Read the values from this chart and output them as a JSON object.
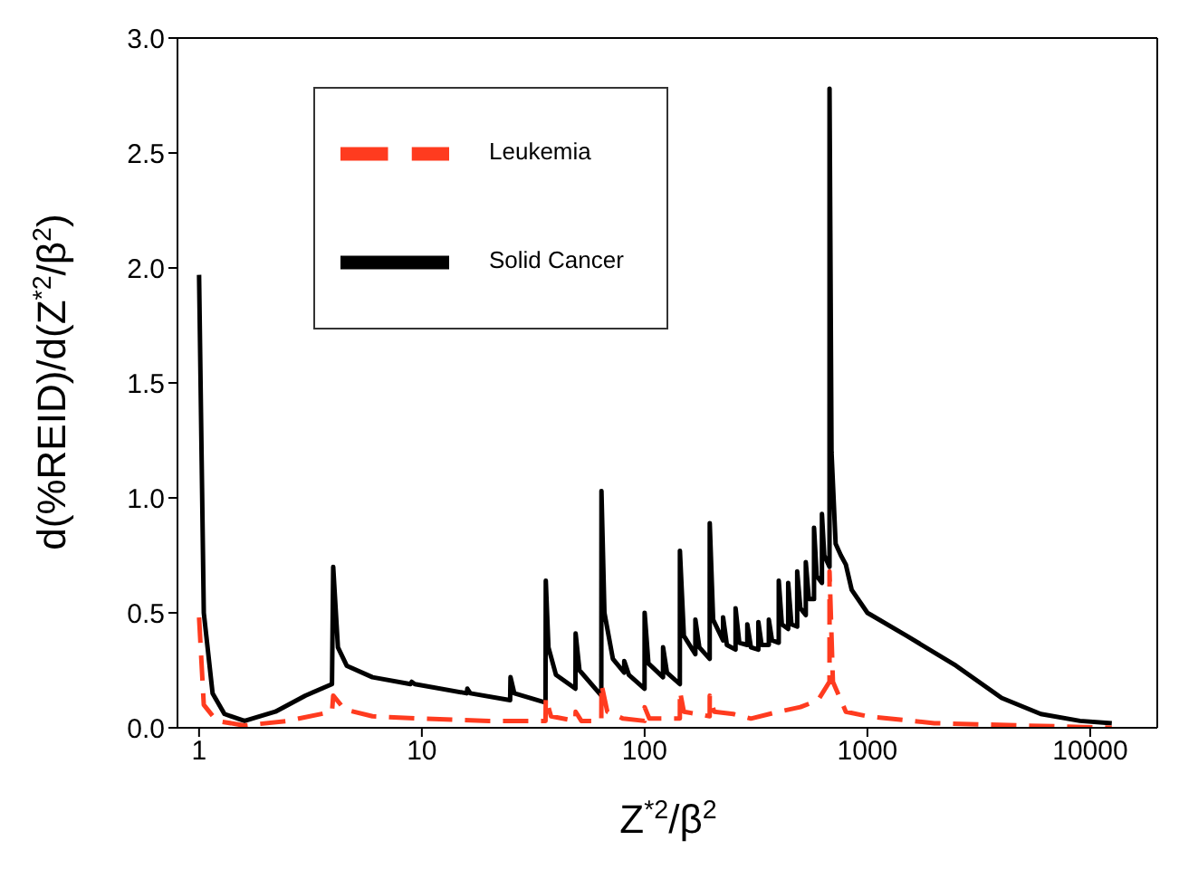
{
  "chart_data": {
    "type": "line",
    "xlabel": "Z$^{*2}$/β$^{2}$",
    "ylabel": "d(%REID)/d(Z$^{*2}$/β$^{2}$)",
    "log": "x",
    "xlim": [
      0.8,
      20000
    ],
    "xticks": [
      1,
      10,
      100,
      1000,
      10000
    ],
    "ylim": [
      0,
      3
    ],
    "yticks": [
      {
        "value": 0,
        "label": "0.0"
      },
      {
        "value": 0.5,
        "label": "0.5"
      },
      {
        "value": 1,
        "label": "1.0"
      },
      {
        "value": 1.5,
        "label": "1.5"
      },
      {
        "value": 2,
        "label": "2.0"
      },
      {
        "value": 2.5,
        "label": "2.5"
      },
      {
        "value": 3,
        "label": "3.0"
      }
    ],
    "grid": false,
    "legend": "top left",
    "marker": "none",
    "series": [
      {
        "name": "Solid Cancer",
        "color": "#000000",
        "line_style": "solid",
        "x": [
          1,
          1.05,
          1.15,
          1.3,
          1.6,
          2.2,
          3,
          3.95,
          4,
          4.2,
          4.6,
          6,
          8.9,
          9,
          9.3,
          15.9,
          16,
          16.5,
          24.9,
          25,
          26,
          35.9,
          36,
          37,
          40,
          48.9,
          49,
          51,
          63.9,
          64,
          66,
          72,
          80.9,
          81,
          85,
          99.9,
          100,
          104,
          120.9,
          121,
          126,
          143.9,
          144,
          150,
          168.9,
          169,
          176,
          195.9,
          196,
          203,
          224.9,
          225,
          234,
          255.9,
          256,
          266,
          288.9,
          289,
          300,
          323.9,
          324,
          335,
          360.9,
          361,
          373,
          399.9,
          400,
          413,
          440.9,
          441,
          456,
          483.9,
          484,
          500,
          528.9,
          529,
          546,
          575.9,
          576,
          592,
          624.9,
          625,
          640,
          675.9,
          676,
          690,
          720,
          760,
          800,
          850,
          1000,
          1500,
          2500,
          4000,
          6000,
          9000,
          12500
        ],
        "values": [
          1.97,
          0.5,
          0.15,
          0.06,
          0.03,
          0.07,
          0.14,
          0.19,
          0.7,
          0.35,
          0.27,
          0.22,
          0.19,
          0.2,
          0.19,
          0.15,
          0.17,
          0.15,
          0.12,
          0.22,
          0.15,
          0.11,
          0.64,
          0.35,
          0.23,
          0.17,
          0.41,
          0.25,
          0.14,
          1.03,
          0.5,
          0.3,
          0.24,
          0.29,
          0.23,
          0.17,
          0.5,
          0.28,
          0.22,
          0.35,
          0.24,
          0.19,
          0.77,
          0.4,
          0.32,
          0.47,
          0.35,
          0.3,
          0.89,
          0.47,
          0.38,
          0.48,
          0.36,
          0.34,
          0.52,
          0.37,
          0.36,
          0.45,
          0.35,
          0.34,
          0.46,
          0.36,
          0.36,
          0.47,
          0.38,
          0.37,
          0.64,
          0.45,
          0.43,
          0.63,
          0.45,
          0.44,
          0.68,
          0.52,
          0.49,
          0.72,
          0.56,
          0.56,
          0.87,
          0.66,
          0.63,
          0.93,
          0.75,
          0.7,
          2.78,
          1.2,
          0.8,
          0.75,
          0.71,
          0.6,
          0.5,
          0.4,
          0.27,
          0.13,
          0.06,
          0.03,
          0.02
        ]
      },
      {
        "name": "Leukemia",
        "color": "#ff3b1f",
        "line_style": "dashed",
        "x": [
          1,
          1.05,
          1.2,
          1.6,
          2.5,
          3.95,
          4,
          4.5,
          6,
          10,
          20,
          35.9,
          36,
          38,
          48.9,
          49,
          52,
          63.9,
          64,
          68,
          80,
          99.9,
          100,
          105,
          143.9,
          144,
          150,
          195.9,
          196,
          205,
          250,
          300,
          400,
          500,
          600,
          675.9,
          676,
          700,
          800,
          1000,
          2000,
          5000,
          12500
        ],
        "values": [
          0.48,
          0.1,
          0.03,
          0.01,
          0.03,
          0.07,
          0.14,
          0.08,
          0.05,
          0.04,
          0.03,
          0.03,
          0.13,
          0.05,
          0.03,
          0.07,
          0.03,
          0.03,
          0.19,
          0.07,
          0.04,
          0.03,
          0.09,
          0.04,
          0.04,
          0.16,
          0.07,
          0.05,
          0.14,
          0.07,
          0.06,
          0.04,
          0.07,
          0.09,
          0.12,
          0.2,
          0.68,
          0.2,
          0.07,
          0.05,
          0.02,
          0.01,
          0
        ]
      }
    ]
  }
}
